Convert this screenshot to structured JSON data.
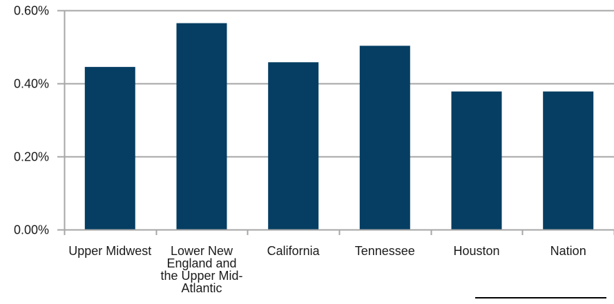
{
  "chart_data": {
    "type": "bar",
    "categories": [
      "Upper Midwest",
      "Lower New England and the Upper Mid-Atlantic",
      "California",
      "Tennessee",
      "Houston",
      "Nation"
    ],
    "values": [
      0.445,
      0.565,
      0.458,
      0.503,
      0.378,
      0.378
    ],
    "yticks": [
      "0.00%",
      "0.20%",
      "0.40%",
      "0.60%"
    ],
    "ytick_values": [
      0,
      0.2,
      0.4,
      0.6
    ],
    "ylim": [
      0,
      0.6
    ],
    "title": "",
    "xlabel": "",
    "ylabel": "",
    "grid": true,
    "bar_color": "#053e62",
    "grid_color": "#a6a6a6"
  }
}
